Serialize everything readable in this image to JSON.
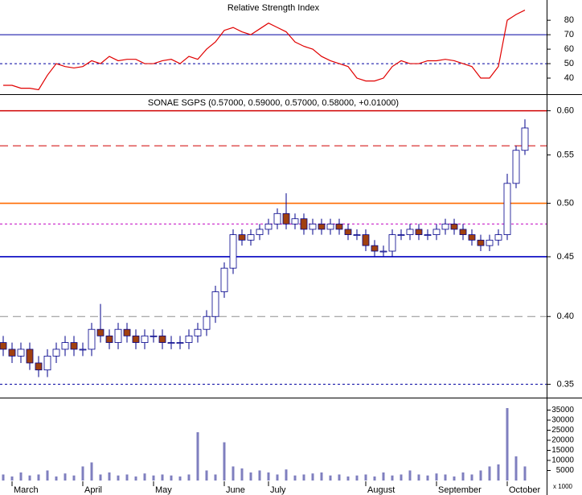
{
  "chart_data": [
    {
      "type": "line",
      "title": "Relative Strength Index",
      "series": [
        {
          "name": "RSI",
          "color": "#e00000",
          "values": [
            35,
            35,
            33,
            33,
            32,
            42,
            50,
            48,
            47,
            48,
            52,
            50,
            55,
            52,
            53,
            53,
            50,
            50,
            52,
            53,
            50,
            55,
            53,
            60,
            65,
            73,
            75,
            72,
            70,
            74,
            78,
            75,
            72,
            65,
            62,
            60,
            55,
            52,
            50,
            48,
            40,
            38,
            38,
            40,
            48,
            52,
            50,
            50,
            52,
            52,
            53,
            52,
            50,
            48,
            40,
            40,
            48,
            80,
            84,
            87
          ]
        }
      ],
      "ylim": [
        30,
        94
      ],
      "yticks": [
        40,
        50,
        60,
        70,
        80
      ],
      "hlines": [
        {
          "value": 70,
          "color": "#0000a0",
          "style": "solid"
        },
        {
          "value": 50,
          "color": "#0000a0",
          "style": "dotted"
        }
      ]
    },
    {
      "type": "candlestick",
      "title": "SONAE SGPS (0.57000, 0.59000, 0.57000, 0.58000, +0.01000)",
      "up_color": "#ffffff",
      "down_color": "#a0400f",
      "edge_color": "#00008b",
      "log_scale": true,
      "open": [
        0.38,
        0.375,
        0.37,
        0.375,
        0.365,
        0.36,
        0.37,
        0.375,
        0.38,
        0.375,
        0.375,
        0.39,
        0.385,
        0.38,
        0.39,
        0.385,
        0.38,
        0.385,
        0.385,
        0.38,
        0.38,
        0.38,
        0.385,
        0.39,
        0.4,
        0.42,
        0.44,
        0.47,
        0.465,
        0.47,
        0.475,
        0.48,
        0.49,
        0.48,
        0.485,
        0.475,
        0.48,
        0.475,
        0.48,
        0.475,
        0.47,
        0.47,
        0.46,
        0.455,
        0.455,
        0.47,
        0.47,
        0.475,
        0.47,
        0.47,
        0.475,
        0.48,
        0.475,
        0.47,
        0.465,
        0.46,
        0.465,
        0.47,
        0.52,
        0.555
      ],
      "high": [
        0.385,
        0.38,
        0.38,
        0.38,
        0.37,
        0.375,
        0.38,
        0.385,
        0.385,
        0.38,
        0.395,
        0.41,
        0.39,
        0.395,
        0.395,
        0.39,
        0.39,
        0.39,
        0.39,
        0.385,
        0.385,
        0.39,
        0.395,
        0.405,
        0.425,
        0.445,
        0.475,
        0.475,
        0.475,
        0.48,
        0.485,
        0.495,
        0.51,
        0.49,
        0.49,
        0.485,
        0.485,
        0.485,
        0.485,
        0.48,
        0.475,
        0.475,
        0.465,
        0.46,
        0.475,
        0.475,
        0.48,
        0.48,
        0.475,
        0.48,
        0.485,
        0.485,
        0.48,
        0.475,
        0.47,
        0.47,
        0.475,
        0.53,
        0.56,
        0.59
      ],
      "low": [
        0.37,
        0.365,
        0.365,
        0.36,
        0.355,
        0.355,
        0.365,
        0.37,
        0.37,
        0.37,
        0.37,
        0.38,
        0.375,
        0.375,
        0.38,
        0.375,
        0.375,
        0.38,
        0.375,
        0.375,
        0.375,
        0.375,
        0.38,
        0.385,
        0.395,
        0.415,
        0.435,
        0.46,
        0.46,
        0.465,
        0.47,
        0.475,
        0.475,
        0.475,
        0.47,
        0.47,
        0.47,
        0.47,
        0.47,
        0.465,
        0.465,
        0.455,
        0.45,
        0.45,
        0.45,
        0.465,
        0.465,
        0.465,
        0.465,
        0.465,
        0.47,
        0.47,
        0.465,
        0.46,
        0.455,
        0.455,
        0.46,
        0.465,
        0.515,
        0.55
      ],
      "close": [
        0.375,
        0.37,
        0.375,
        0.365,
        0.36,
        0.37,
        0.375,
        0.38,
        0.375,
        0.375,
        0.39,
        0.385,
        0.38,
        0.39,
        0.385,
        0.38,
        0.385,
        0.385,
        0.38,
        0.38,
        0.38,
        0.385,
        0.39,
        0.4,
        0.42,
        0.44,
        0.47,
        0.465,
        0.47,
        0.475,
        0.48,
        0.49,
        0.48,
        0.485,
        0.475,
        0.48,
        0.475,
        0.48,
        0.475,
        0.47,
        0.47,
        0.46,
        0.455,
        0.455,
        0.47,
        0.47,
        0.475,
        0.47,
        0.47,
        0.475,
        0.48,
        0.475,
        0.47,
        0.465,
        0.46,
        0.465,
        0.47,
        0.52,
        0.555,
        0.58
      ],
      "ylim": [
        0.342,
        0.617
      ],
      "yticks": [
        {
          "value": 0.35,
          "label": "0.35"
        },
        {
          "value": 0.4,
          "label": "0.40"
        },
        {
          "value": 0.45,
          "label": "0.45"
        },
        {
          "value": 0.5,
          "label": "0.50"
        },
        {
          "value": 0.55,
          "label": "0.55"
        },
        {
          "value": 0.6,
          "label": "0.60"
        }
      ],
      "hlines": [
        {
          "value": 0.6,
          "color": "#d00000",
          "style": "solid"
        },
        {
          "value": 0.56,
          "color": "#d00000",
          "style": "dashed"
        },
        {
          "value": 0.5,
          "color": "#ff6a00",
          "style": "solid"
        },
        {
          "value": 0.48,
          "color": "#c000c0",
          "style": "dotted"
        },
        {
          "value": 0.45,
          "color": "#0000c0",
          "style": "solid"
        },
        {
          "value": 0.4,
          "color": "#909090",
          "style": "dashed"
        },
        {
          "value": 0.35,
          "color": "#0000a0",
          "style": "dotted"
        }
      ]
    },
    {
      "type": "bar",
      "color": "#7f7fbf",
      "y_unit_label": "x 1000",
      "categories": [
        null,
        "March",
        null,
        null,
        null,
        null,
        null,
        null,
        null,
        "April",
        null,
        null,
        null,
        null,
        null,
        null,
        null,
        "May",
        null,
        null,
        null,
        null,
        null,
        null,
        null,
        "June",
        null,
        null,
        null,
        null,
        "July",
        null,
        null,
        null,
        null,
        null,
        null,
        null,
        null,
        null,
        null,
        "August",
        null,
        null,
        null,
        null,
        null,
        null,
        null,
        "September",
        null,
        null,
        null,
        null,
        null,
        null,
        null,
        "October",
        null,
        null
      ],
      "values": [
        3000,
        2000,
        4000,
        2500,
        3000,
        5000,
        2000,
        3500,
        2500,
        7000,
        9000,
        3000,
        4000,
        2500,
        3000,
        2000,
        3500,
        2500,
        3000,
        2500,
        2000,
        3000,
        24000,
        5000,
        3000,
        19000,
        7000,
        6000,
        4000,
        5000,
        4000,
        3000,
        5500,
        2500,
        3000,
        3500,
        4000,
        2500,
        3000,
        2000,
        2500,
        3000,
        2000,
        4000,
        2500,
        3000,
        5000,
        3000,
        2500,
        3500,
        3000,
        2000,
        4000,
        3000,
        5000,
        7000,
        8000,
        36000,
        12000,
        7000
      ],
      "ylim": [
        0,
        40000
      ],
      "yticks": [
        5000,
        10000,
        15000,
        20000,
        25000,
        30000,
        35000
      ]
    }
  ]
}
